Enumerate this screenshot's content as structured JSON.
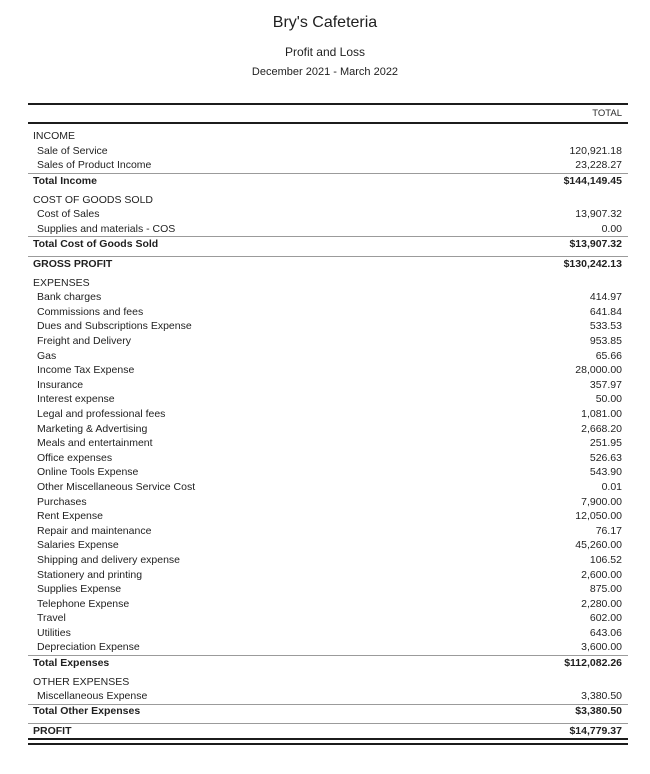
{
  "report": {
    "company": "Bry's Cafeteria",
    "title": "Profit and Loss",
    "period": "December 2021 - March 2022",
    "column_header": "TOTAL",
    "colors": {
      "text": "#1f1f1f",
      "rule_dark": "#1c1c1c",
      "rule_gray": "#9b9b9b",
      "background": "#ffffff"
    },
    "rows": [
      {
        "type": "section",
        "label": "INCOME"
      },
      {
        "type": "detail",
        "label": "Sale of Service",
        "value": "120,921.18"
      },
      {
        "type": "detail",
        "label": "Sales of Product Income",
        "value": "23,228.27"
      },
      {
        "type": "total",
        "label": "Total Income",
        "value": "$144,149.45"
      },
      {
        "type": "section",
        "label": "COST OF GOODS SOLD"
      },
      {
        "type": "detail",
        "label": "Cost of Sales",
        "value": "13,907.32"
      },
      {
        "type": "detail",
        "label": "Supplies and materials - COS",
        "value": "0.00"
      },
      {
        "type": "total",
        "label": "Total Cost of Goods Sold",
        "value": "$13,907.32"
      },
      {
        "type": "grand",
        "label": "GROSS PROFIT",
        "value": "$130,242.13"
      },
      {
        "type": "section",
        "label": "EXPENSES"
      },
      {
        "type": "detail",
        "label": "Bank charges",
        "value": "414.97"
      },
      {
        "type": "detail",
        "label": "Commissions and fees",
        "value": "641.84"
      },
      {
        "type": "detail",
        "label": "Dues and Subscriptions Expense",
        "value": "533.53"
      },
      {
        "type": "detail",
        "label": "Freight and Delivery",
        "value": "953.85"
      },
      {
        "type": "detail",
        "label": "Gas",
        "value": "65.66"
      },
      {
        "type": "detail",
        "label": "Income Tax Expense",
        "value": "28,000.00"
      },
      {
        "type": "detail",
        "label": "Insurance",
        "value": "357.97"
      },
      {
        "type": "detail",
        "label": "Interest expense",
        "value": "50.00"
      },
      {
        "type": "detail",
        "label": "Legal and professional fees",
        "value": "1,081.00"
      },
      {
        "type": "detail",
        "label": "Marketing & Advertising",
        "value": "2,668.20"
      },
      {
        "type": "detail",
        "label": "Meals and entertainment",
        "value": "251.95"
      },
      {
        "type": "detail",
        "label": "Office expenses",
        "value": "526.63"
      },
      {
        "type": "detail",
        "label": "Online Tools Expense",
        "value": "543.90"
      },
      {
        "type": "detail",
        "label": "Other Miscellaneous Service Cost",
        "value": "0.01"
      },
      {
        "type": "detail",
        "label": "Purchases",
        "value": "7,900.00"
      },
      {
        "type": "detail",
        "label": "Rent Expense",
        "value": "12,050.00"
      },
      {
        "type": "detail",
        "label": "Repair and maintenance",
        "value": "76.17"
      },
      {
        "type": "detail",
        "label": "Salaries Expense",
        "value": "45,260.00"
      },
      {
        "type": "detail",
        "label": "Shipping and delivery expense",
        "value": "106.52"
      },
      {
        "type": "detail",
        "label": "Stationery and printing",
        "value": "2,600.00"
      },
      {
        "type": "detail",
        "label": "Supplies Expense",
        "value": "875.00"
      },
      {
        "type": "detail",
        "label": "Telephone Expense",
        "value": "2,280.00"
      },
      {
        "type": "detail",
        "label": "Travel",
        "value": "602.00"
      },
      {
        "type": "detail",
        "label": "Utilities",
        "value": "643.06"
      },
      {
        "type": "detail",
        "label": "Depreciation Expense",
        "value": "3,600.00"
      },
      {
        "type": "total",
        "label": "Total Expenses",
        "value": "$112,082.26"
      },
      {
        "type": "section",
        "label": "OTHER EXPENSES"
      },
      {
        "type": "detail",
        "label": "Miscellaneous Expense",
        "value": "3,380.50"
      },
      {
        "type": "total",
        "label": "Total Other Expenses",
        "value": "$3,380.50"
      },
      {
        "type": "profit",
        "label": "PROFIT",
        "value": "$14,779.37"
      }
    ]
  }
}
